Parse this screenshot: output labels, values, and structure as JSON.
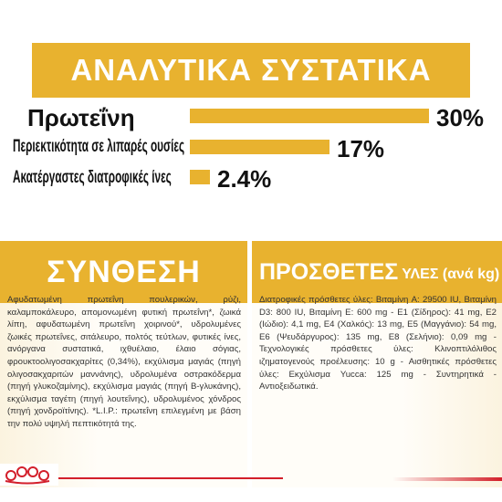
{
  "analysis": {
    "title": "ΑΝΑΛΥΤΙΚΑ ΣΥΣΤΑΤΙΚΑ",
    "rows": [
      {
        "label": "Πρωτεΐνη",
        "value": "30%",
        "percent": 30
      },
      {
        "label": "Περιεκτικότητα σε λιπαρές ουσίες",
        "value": "17%",
        "percent": 17
      },
      {
        "label": "Ακατέργαστες διατροφικές ίνες",
        "value": "2.4%",
        "percent": 2.4
      }
    ]
  },
  "composition": {
    "title": "ΣΥΝΘΕΣΗ",
    "text": "Αφυδατωμένη πρωτεΐνη πουλερικών, ρύζι, καλαμποκάλευρο, απομονωμένη φυτική πρωτεΐνη*, ζωικά λίπη, αφυδατωμένη πρωτεΐνη χοιρινού*, υδρολυμένες ζωικές πρωτεΐνες, σιτάλευρο, πολτός τεύτλων, φυτικές ίνες, ανόργανα συστατικά, ιχθυέλαιο, έλαιο σόγιας, φρουκτοολιγοσακχαρίτες (0,34%), εκχύλισμα μαγιάς (πηγή ολιγοσακχαριτών μαννάνης), υδρολυμένα οστρακόδερμα (πηγή γλυκοζαμίνης), εκχύλισμα μαγιάς (πηγή Β-γλυκάνης), εκχύλισμα ταγέτη (πηγή λουτεΐνης), υδρολυμένος χόνδρος (πηγή χονδροϊτίνης). *L.I.P.: πρωτεΐνη επιλεγμένη με βάση την πολύ υψηλή πεπτικότητά της."
  },
  "additives": {
    "title": "ΠΡΟΣΘΕΤΕΣ",
    "title_small": "ΥΛΕΣ (ανά kg)",
    "text": "Διατροφικές πρόσθετες ύλες: Βιταμίνη A: 29500 IU, Βιταμίνη D3: 800 IU, Βιταμίνη E: 600 mg - E1 (Σίδηρος): 41 mg, E2 (Ιώδιο): 4,1 mg, E4 (Χαλκός): 13 mg, E5 (Μαγγάνιο): 54 mg, E6 (Ψευδάργυρος): 135 mg, E8 (Σελήνιο): 0,09 mg - Τεχνολογικές πρόσθετες ύλες: Κλινοπτιλόλιθος ιζηματογενούς προέλευσης: 10 g - Αισθητικές πρόσθετες ύλες: Εκχύλισμα Yucca: 125 mg - Συντηρητικά - Αντιοξειδωτικά."
  },
  "colors": {
    "accent": "#e8b22f",
    "brand_red": "#d31f2b"
  },
  "icons": {
    "logo": "royal-crown-icon"
  }
}
